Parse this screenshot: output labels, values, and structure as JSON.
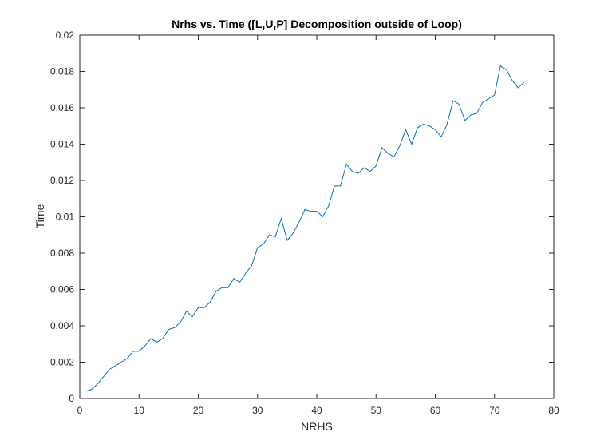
{
  "chart_data": {
    "type": "line",
    "title": "Nrhs vs. Time ([L,U,P] Decomposition outside of Loop)",
    "xlabel": "NRHS",
    "ylabel": "Time",
    "xlim": [
      0,
      80
    ],
    "ylim": [
      0,
      0.02
    ],
    "xticks": [
      "0",
      "10",
      "20",
      "30",
      "40",
      "50",
      "60",
      "70",
      "80"
    ],
    "yticks": [
      "0",
      "0.002",
      "0.004",
      "0.006",
      "0.008",
      "0.01",
      "0.012",
      "0.014",
      "0.016",
      "0.018",
      "0.02"
    ],
    "grid": false,
    "line_color": "#0072BD",
    "series": [
      {
        "x": [
          1,
          2,
          3,
          4,
          5,
          6,
          7,
          8,
          9,
          10,
          11,
          12,
          13,
          14,
          15,
          16,
          17,
          18,
          19,
          20,
          21,
          22,
          23,
          24,
          25,
          26,
          27,
          28,
          29,
          30,
          31,
          32,
          33,
          34,
          35,
          36,
          37,
          38,
          39,
          40,
          41,
          42,
          43,
          44,
          45,
          46,
          47,
          48,
          49,
          50,
          51,
          52,
          53,
          54,
          55,
          56,
          57,
          58,
          59,
          60,
          61,
          62,
          63,
          64,
          65,
          66,
          67,
          68,
          69,
          70,
          71,
          72,
          73,
          74,
          75
        ],
        "values": [
          0.0004,
          0.0005,
          0.0008,
          0.0012,
          0.0016,
          0.0018,
          0.002,
          0.0022,
          0.0026,
          0.0026,
          0.0029,
          0.0033,
          0.0031,
          0.0033,
          0.0038,
          0.0039,
          0.0042,
          0.0048,
          0.0045,
          0.005,
          0.005,
          0.0053,
          0.0059,
          0.0061,
          0.0061,
          0.0066,
          0.0064,
          0.0069,
          0.0073,
          0.0083,
          0.0085,
          0.009,
          0.0089,
          0.0099,
          0.0087,
          0.0091,
          0.0097,
          0.0104,
          0.0103,
          0.0103,
          0.01,
          0.0106,
          0.0117,
          0.0117,
          0.0129,
          0.0125,
          0.0124,
          0.0127,
          0.0125,
          0.0128,
          0.0138,
          0.0135,
          0.0133,
          0.0139,
          0.0148,
          0.014,
          0.0149,
          0.0151,
          0.015,
          0.0148,
          0.0144,
          0.0151,
          0.0164,
          0.0162,
          0.0153,
          0.0156,
          0.0157,
          0.0163,
          0.0165,
          0.0167,
          0.0183,
          0.0181,
          0.0175,
          0.0171,
          0.0174
        ]
      }
    ]
  }
}
